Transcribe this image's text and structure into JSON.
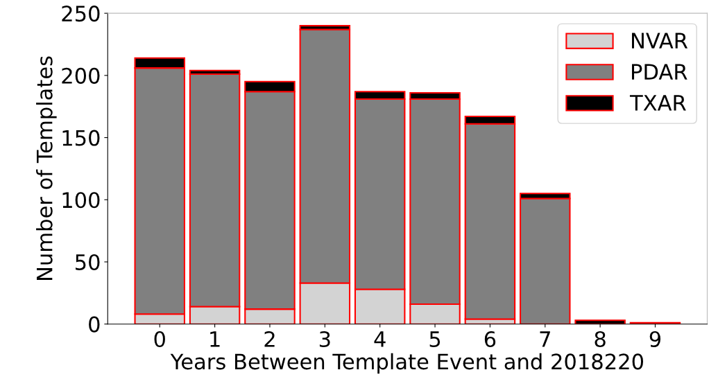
{
  "chart_data": {
    "type": "bar",
    "stacked": true,
    "xlabel": "Years Between Template Event and 2018220",
    "ylabel": "Number of Templates",
    "categories": [
      "0",
      "1",
      "2",
      "3",
      "4",
      "5",
      "6",
      "7",
      "8",
      "9"
    ],
    "series": [
      {
        "name": "NVAR",
        "color": "#d3d3d3",
        "values": [
          8,
          14,
          12,
          33,
          28,
          16,
          4,
          0,
          0,
          0
        ]
      },
      {
        "name": "PDAR",
        "color": "#808080",
        "values": [
          198,
          187,
          175,
          204,
          153,
          165,
          157,
          101,
          0,
          1
        ]
      },
      {
        "name": "TXAR",
        "color": "#000000",
        "values": [
          8,
          3,
          8,
          3,
          6,
          5,
          6,
          4,
          3,
          0
        ]
      }
    ],
    "ylim": [
      0,
      250
    ],
    "yticks": [
      0,
      50,
      100,
      150,
      200,
      250
    ],
    "grid": false,
    "legend": "top right"
  }
}
